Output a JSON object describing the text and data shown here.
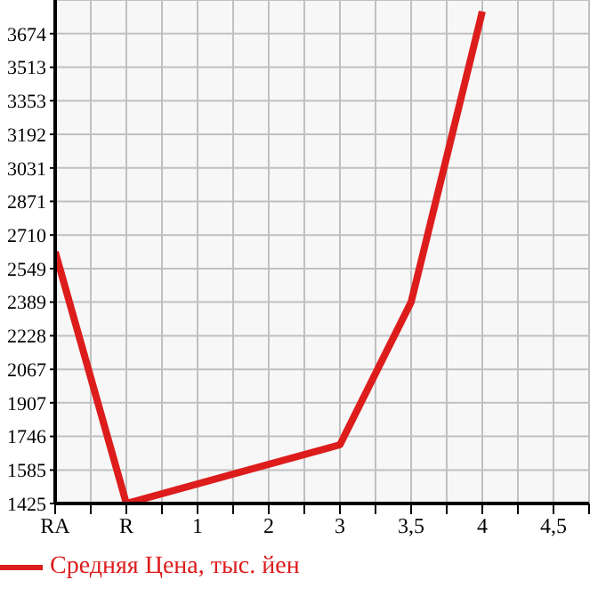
{
  "chart_data": {
    "type": "line",
    "categories": [
      "RA",
      "R",
      "1",
      "2",
      "3",
      "3,5",
      "4",
      "4,5"
    ],
    "series": [
      {
        "name": "Средняя Цена, тыс. йен",
        "color": "#dd1c1c",
        "values": [
          2630,
          1425,
          null,
          null,
          1706,
          2389,
          3780,
          null
        ]
      }
    ],
    "ylim": [
      1425,
      3835
    ],
    "yticks": [
      1425,
      1585,
      1746,
      1907,
      2067,
      2228,
      2389,
      2549,
      2710,
      2871,
      3031,
      3192,
      3353,
      3513,
      3674
    ],
    "grid": true,
    "legend": "bottom"
  }
}
